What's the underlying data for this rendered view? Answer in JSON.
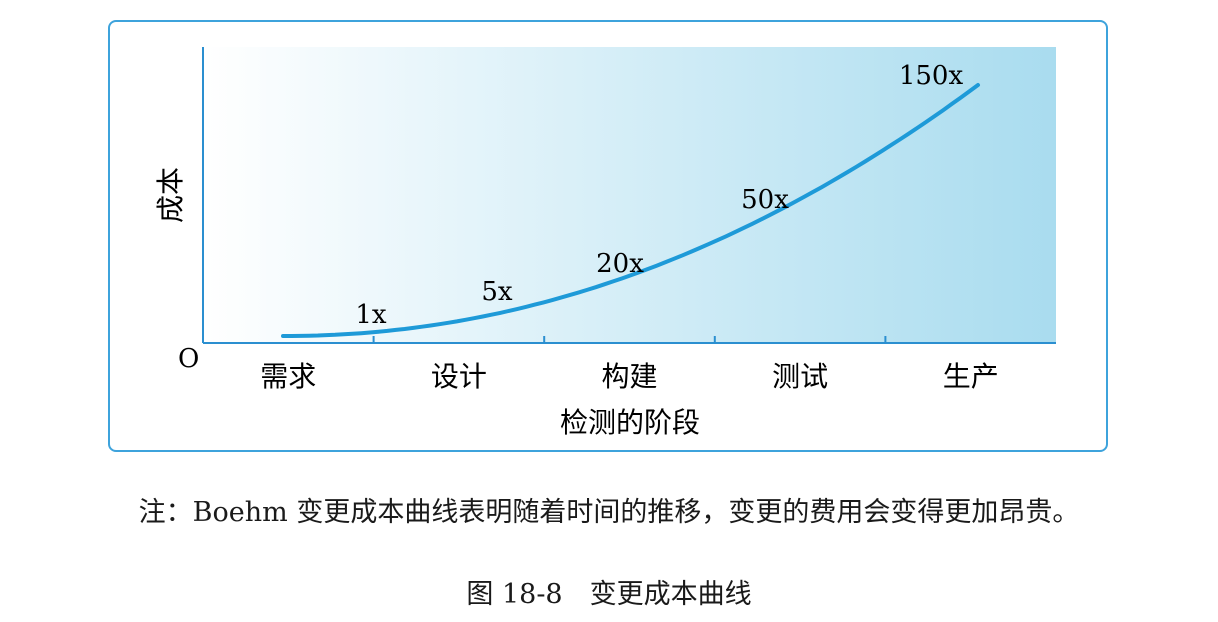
{
  "chart_data": {
    "type": "line",
    "categories": [
      "需求",
      "设计",
      "构建",
      "测试",
      "生产"
    ],
    "series": [
      {
        "values": [
          1,
          5,
          20,
          50,
          150
        ]
      }
    ],
    "point_labels": [
      "1x",
      "5x",
      "20x",
      "50x",
      "150x"
    ],
    "xlabel": "检测的阶段",
    "ylabel": "成本",
    "origin_label": "O",
    "grid": false,
    "colors": {
      "line": "#1e9ad8",
      "axis": "#2b8fd0",
      "fill_light": "#ffffff",
      "fill_dark": "#a9dcef",
      "border": "#3ea3dc"
    }
  },
  "note": "注：Boehm 变更成本曲线表明随着时间的推移，变更的费用会变得更加昂贵。",
  "caption": "图 18-8　变更成本曲线"
}
